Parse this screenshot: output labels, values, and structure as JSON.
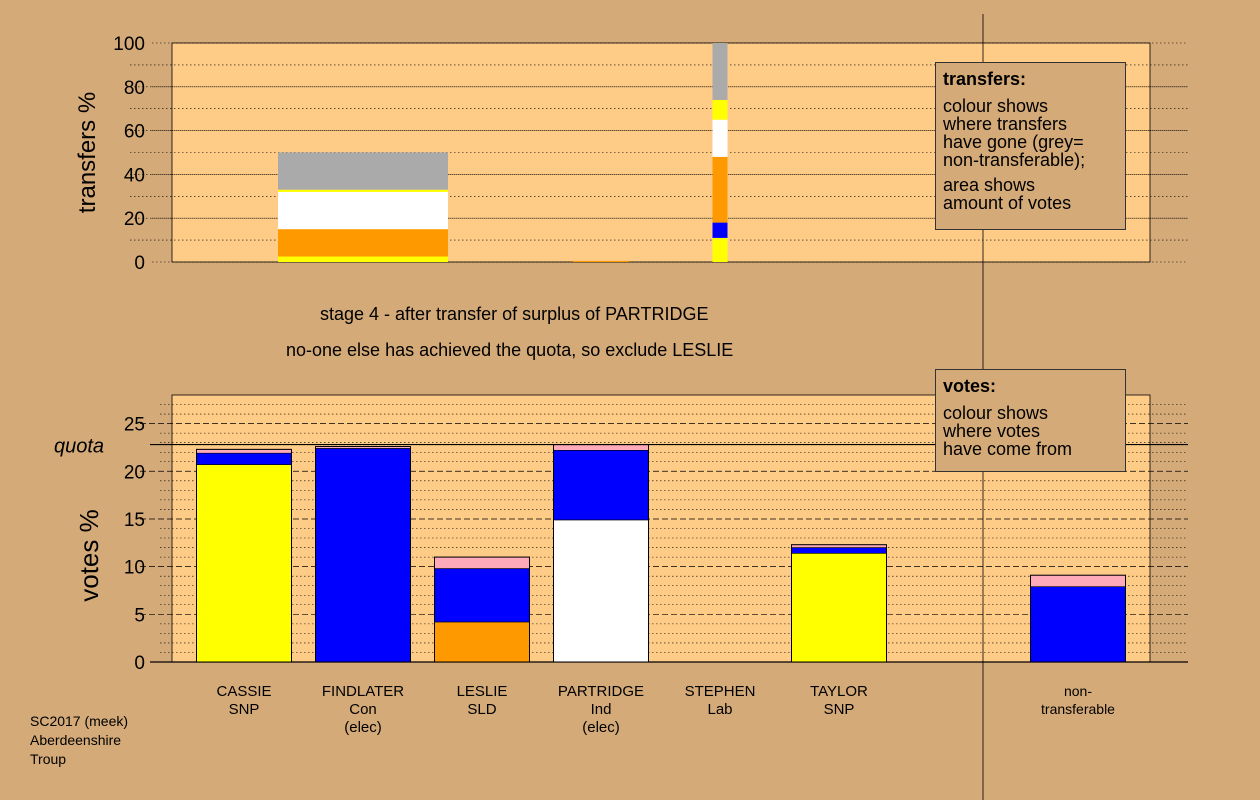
{
  "title_line1": "stage 4 - after transfer of surplus of PARTRIDGE",
  "title_line2": "no-one else has achieved the quota, so exclude LESLIE",
  "footer": [
    "SC2017 (meek)",
    "Aberdeenshire",
    "Troup"
  ],
  "legend_transfers": {
    "heading": "transfers:",
    "body1": [
      "colour shows",
      "where transfers",
      "have gone (grey=",
      "non-transferable);"
    ],
    "body2": [
      "area shows",
      "amount of votes"
    ]
  },
  "legend_votes": {
    "heading": "votes:",
    "body": [
      "colour shows",
      "where votes",
      "have come from"
    ]
  },
  "colors": {
    "background": "#d4aa78",
    "plot_bg": "#ffcc88",
    "SNP": "#ffff00",
    "Con": "#0000ff",
    "SLD": "#ff9900",
    "Ind": "#ffffff",
    "nontransferable": "#aaaaaa",
    "carried": "#ffaabb"
  },
  "chart_data": [
    {
      "type": "bar",
      "name": "transfers",
      "ylabel": "transfers %",
      "ylim": [
        0,
        100
      ],
      "yticks": [
        0,
        20,
        40,
        60,
        80,
        100
      ],
      "grid": "dotted every 10",
      "columns": [
        {
          "candidate": "CASSIE",
          "segments": []
        },
        {
          "candidate": "FINDLATER",
          "segments": [
            {
              "to": "SNP",
              "value": 2.5
            },
            {
              "to": "SLD",
              "value": 12.5
            },
            {
              "to": "Ind",
              "value": 17
            },
            {
              "to": "SNP",
              "value": 1
            },
            {
              "to": "nontransferable",
              "value": 17
            }
          ]
        },
        {
          "candidate": "LESLIE",
          "segments": []
        },
        {
          "candidate": "PARTRIDGE",
          "segments": [
            {
              "to": "SLD",
              "value": 0.5
            }
          ]
        },
        {
          "candidate": "STEPHEN",
          "segments": [
            {
              "to": "SNP",
              "value": 11
            },
            {
              "to": "Con",
              "value": 7
            },
            {
              "to": "SLD",
              "value": 30
            },
            {
              "to": "Ind",
              "value": 17
            },
            {
              "to": "SNP",
              "value": 9
            },
            {
              "to": "nontransferable",
              "value": 26
            }
          ]
        },
        {
          "candidate": "TAYLOR",
          "segments": []
        }
      ]
    },
    {
      "type": "bar",
      "name": "votes",
      "ylabel": "votes %",
      "ylim": [
        0,
        28
      ],
      "yticks": [
        0,
        5,
        10,
        15,
        20,
        25
      ],
      "quota": 22.8,
      "quota_label": "quota",
      "grid": "dashed every 5, dotted every 1",
      "columns": [
        {
          "label": [
            "CASSIE",
            "SNP"
          ],
          "segments": [
            {
              "from": "SNP",
              "value": 20.7
            },
            {
              "from": "Con",
              "value": 1.2
            },
            {
              "from": "carried",
              "value": 0.4
            }
          ]
        },
        {
          "label": [
            "FINDLATER",
            "Con",
            "(elec)"
          ],
          "segments": [
            {
              "from": "Con",
              "value": 22.4
            },
            {
              "from": "carried",
              "value": 0.2
            }
          ]
        },
        {
          "label": [
            "LESLIE",
            "SLD"
          ],
          "segments": [
            {
              "from": "SLD",
              "value": 4.2
            },
            {
              "from": "Con",
              "value": 5.6
            },
            {
              "from": "carried",
              "value": 1.2
            }
          ]
        },
        {
          "label": [
            "PARTRIDGE",
            "Ind",
            "(elec)"
          ],
          "segments": [
            {
              "from": "Ind",
              "value": 14.9
            },
            {
              "from": "Con",
              "value": 7.3
            },
            {
              "from": "carried",
              "value": 0.6
            }
          ]
        },
        {
          "label": [
            "STEPHEN",
            "Lab"
          ],
          "segments": []
        },
        {
          "label": [
            "TAYLOR",
            "SNP"
          ],
          "segments": [
            {
              "from": "SNP",
              "value": 11.4
            },
            {
              "from": "Con",
              "value": 0.6
            },
            {
              "from": "carried",
              "value": 0.3
            }
          ]
        },
        {
          "label": [
            "non-",
            "transferable"
          ],
          "segments": [
            {
              "from": "Con",
              "value": 7.9
            },
            {
              "from": "carried",
              "value": 1.2
            }
          ]
        }
      ]
    }
  ]
}
